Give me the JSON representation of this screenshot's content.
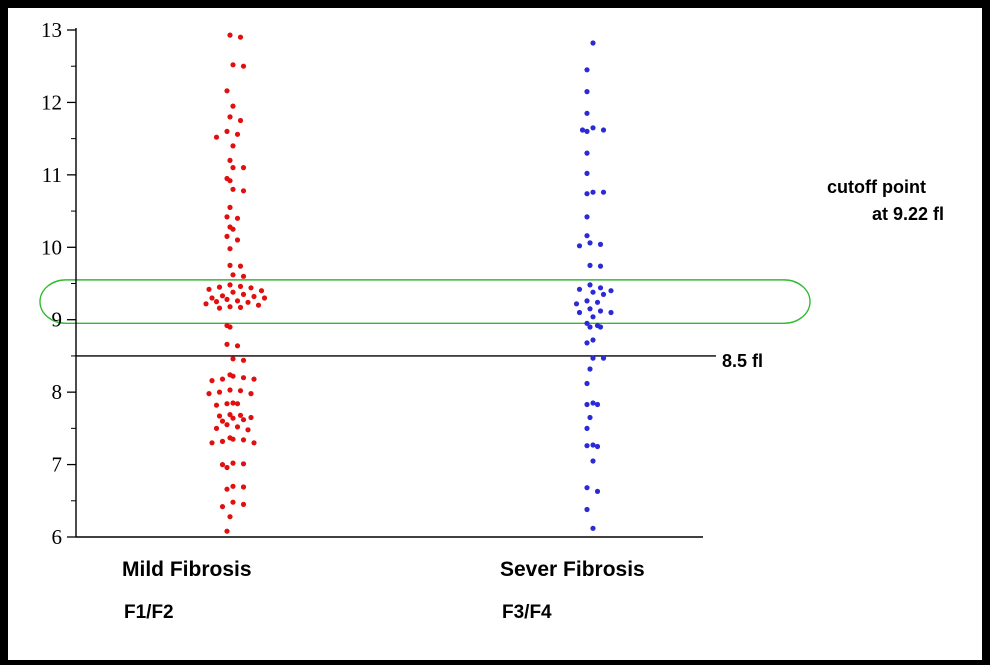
{
  "chart_data": {
    "type": "scatter",
    "title": "",
    "xlabel": "",
    "ylabel": "",
    "ylim": [
      6,
      13
    ],
    "yticks": [
      6,
      7,
      8,
      9,
      10,
      11,
      12,
      13
    ],
    "grid": false,
    "categories": [
      "Mild Fibrosis",
      "Sever Fibrosis"
    ],
    "category_sublabels": [
      "F1/F2",
      "F3/F4"
    ],
    "series": [
      {
        "color": "#e01010",
        "values": [
          12.93,
          12.9,
          12.52,
          12.5,
          12.16,
          11.95,
          11.8,
          11.75,
          11.6,
          11.56,
          11.52,
          11.4,
          11.2,
          11.1,
          11.1,
          10.95,
          10.92,
          10.8,
          10.78,
          10.55,
          10.42,
          10.4,
          10.28,
          10.25,
          10.15,
          10.1,
          9.98,
          9.75,
          9.74,
          9.62,
          9.6,
          9.48,
          9.46,
          9.45,
          9.44,
          9.42,
          9.4,
          9.38,
          9.35,
          9.33,
          9.32,
          9.3,
          9.3,
          9.28,
          9.26,
          9.25,
          9.24,
          9.22,
          9.2,
          9.18,
          9.17,
          9.16,
          8.92,
          8.9,
          8.66,
          8.64,
          8.46,
          8.44,
          8.24,
          8.22,
          8.2,
          8.18,
          8.18,
          8.16,
          8.03,
          8.02,
          8.0,
          7.98,
          7.98,
          7.85,
          7.84,
          7.84,
          7.82,
          7.69,
          7.68,
          7.67,
          7.65,
          7.64,
          7.62,
          7.6,
          7.55,
          7.52,
          7.5,
          7.48,
          7.37,
          7.35,
          7.34,
          7.32,
          7.3,
          7.3,
          7.02,
          7.01,
          7.0,
          6.96,
          6.7,
          6.69,
          6.66,
          6.48,
          6.45,
          6.42,
          6.28,
          6.08
        ]
      },
      {
        "color": "#2b2bd6",
        "values": [
          12.82,
          12.45,
          12.15,
          11.85,
          11.65,
          11.62,
          11.62,
          11.6,
          11.3,
          11.02,
          10.76,
          10.76,
          10.74,
          10.42,
          10.16,
          10.06,
          10.04,
          10.02,
          9.75,
          9.74,
          9.48,
          9.44,
          9.42,
          9.4,
          9.38,
          9.35,
          9.26,
          9.24,
          9.22,
          9.15,
          9.12,
          9.1,
          9.1,
          9.04,
          8.95,
          8.92,
          8.9,
          8.9,
          8.72,
          8.68,
          8.47,
          8.47,
          8.32,
          8.12,
          7.85,
          7.83,
          7.83,
          7.65,
          7.5,
          7.27,
          7.26,
          7.25,
          7.05,
          6.68,
          6.63,
          6.38,
          6.12
        ]
      }
    ],
    "annotations": {
      "reference_line": {
        "value": 8.5,
        "label": "8.5 fl"
      },
      "highlight_band": {
        "from": 8.95,
        "to": 9.55,
        "color": "#33bb33"
      },
      "cutoff_text_line1": "cutoff  point",
      "cutoff_text_line2": "at 9.22 fl"
    }
  }
}
